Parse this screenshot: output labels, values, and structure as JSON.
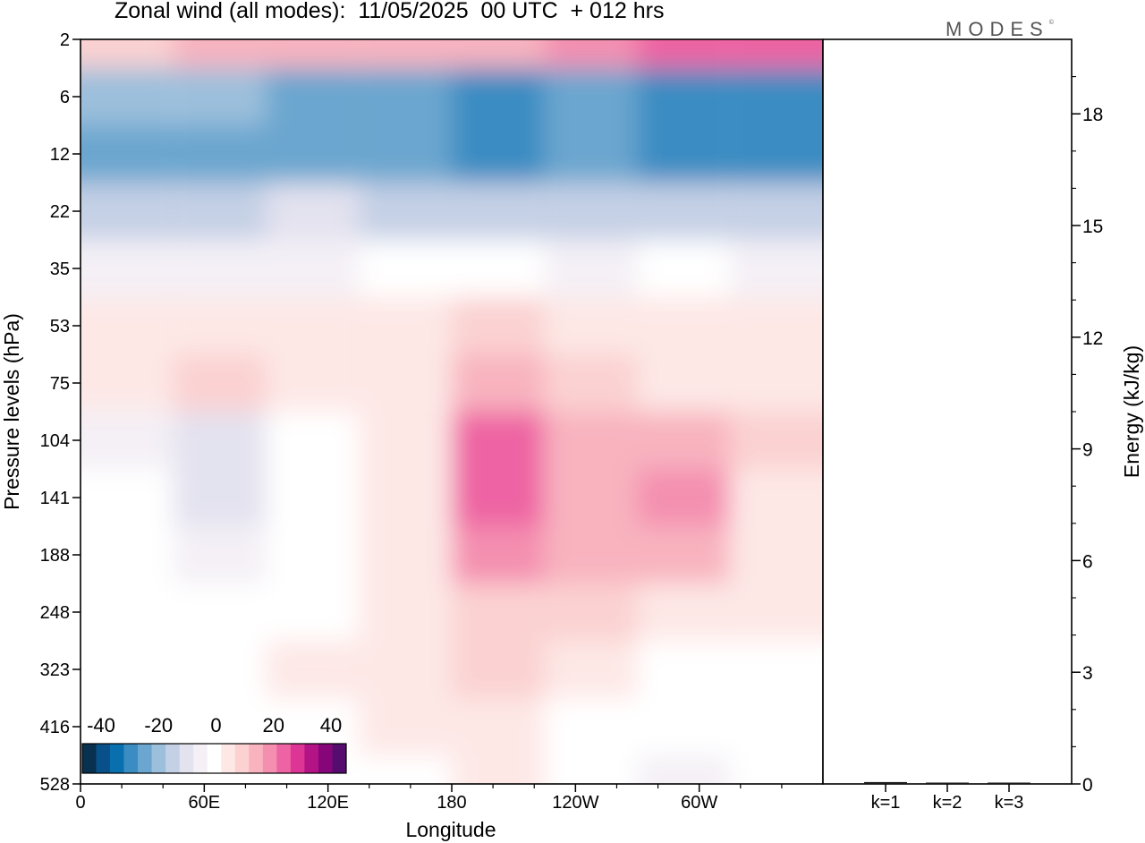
{
  "title": "Zonal wind (all modes):  11/05/2025  00 UTC  + 012 hrs",
  "logo": {
    "text": "MODES",
    "mark": "©"
  },
  "chart_data": [
    {
      "type": "heatmap",
      "variable": "Zonal wind",
      "xlabel": "Longitude",
      "ylabel": "Pressure levels (hPa)",
      "x_ticks": [
        "0",
        "60E",
        "120E",
        "180",
        "120W",
        "60W"
      ],
      "y_ticks": [
        "2",
        "6",
        "12",
        "22",
        "35",
        "53",
        "75",
        "104",
        "141",
        "188",
        "248",
        "323",
        "416",
        "528"
      ],
      "colorbar": {
        "tick_labels": [
          "-40",
          "-20",
          "0",
          "20",
          "40"
        ],
        "range": [
          -45,
          45
        ],
        "colors": [
          "#08304f",
          "#08508a",
          "#0a6fae",
          "#3a8cc2",
          "#6aa6cf",
          "#9cbfdc",
          "#c4d0e5",
          "#e3e2ef",
          "#f4f0f6",
          "#ffffff",
          "#fde8e6",
          "#fbd1d1",
          "#f8b3bf",
          "#f48fb0",
          "#ee63a3",
          "#dd3595",
          "#b31385",
          "#86067a",
          "#560b6e"
        ]
      },
      "rows": [
        {
          "level": "2",
          "values": [
            10,
            12,
            12,
            14,
            14,
            20,
            24,
            26
          ]
        },
        {
          "level": "6",
          "values": [
            -18,
            -20,
            -22,
            -26,
            -28,
            -26,
            -30,
            -28
          ]
        },
        {
          "level": "12",
          "values": [
            -22,
            -24,
            -22,
            -26,
            -28,
            -26,
            -28,
            -30
          ]
        },
        {
          "level": "22",
          "values": [
            -15,
            -13,
            -11,
            -14,
            -15,
            -15,
            -14,
            -16
          ]
        },
        {
          "level": "35",
          "values": [
            -4,
            -3,
            -3,
            -2,
            -2,
            -3,
            -2,
            -3
          ]
        },
        {
          "level": "53",
          "values": [
            4,
            7,
            5,
            4,
            11,
            6,
            5,
            5
          ]
        },
        {
          "level": "75",
          "values": [
            7,
            8,
            5,
            7,
            13,
            11,
            3,
            6
          ]
        },
        {
          "level": "104",
          "values": [
            -3,
            -9,
            2,
            5,
            22,
            14,
            16,
            8
          ]
        },
        {
          "level": "141",
          "values": [
            -2,
            -8,
            2,
            4,
            24,
            16,
            18,
            5
          ]
        },
        {
          "level": "188",
          "values": [
            -2,
            -4,
            2,
            3,
            18,
            12,
            12,
            4
          ]
        },
        {
          "level": "248",
          "values": [
            -1,
            -2,
            2,
            4,
            11,
            8,
            6,
            3
          ]
        },
        {
          "level": "323",
          "values": [
            -1,
            1,
            3,
            6,
            8,
            5,
            2,
            1
          ]
        },
        {
          "level": "416",
          "values": [
            -1,
            1,
            2,
            3,
            5,
            2,
            -1,
            -1
          ]
        },
        {
          "level": "528",
          "values": [
            -1,
            1,
            1,
            2,
            3,
            0,
            -3,
            -2
          ]
        }
      ]
    },
    {
      "type": "bar",
      "categories": [
        "k=1",
        "k=2",
        "k=3"
      ],
      "values": [
        0.05,
        0.02,
        0.01
      ],
      "ylabel": "Energy (kJ/kg)",
      "ylim": [
        0,
        20
      ],
      "y_ticks": [
        0,
        3,
        6,
        9,
        12,
        15,
        18
      ]
    }
  ]
}
